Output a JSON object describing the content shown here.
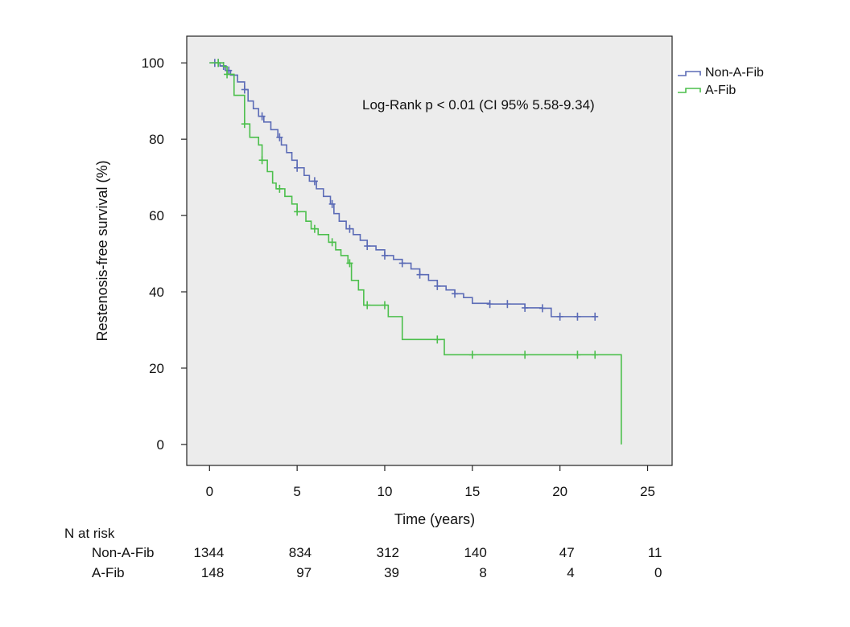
{
  "chart_data": {
    "type": "line",
    "subtype": "kaplan-meier",
    "title": "",
    "xlabel": "Time (years)",
    "ylabel": "Restenosis-free survival (%)",
    "xlim": [
      -1.3,
      26.4
    ],
    "ylim": [
      -5.5,
      107
    ],
    "xticks": [
      0,
      5,
      10,
      15,
      20,
      25
    ],
    "yticks": [
      0,
      20,
      40,
      60,
      80,
      100
    ],
    "grid": false,
    "background": "#ececec",
    "annotation": "Log-Rank p < 0.01 (CI 95% 5.58-9.34)",
    "legend": {
      "position": "top-right-outside",
      "entries": [
        {
          "label": "Non-A-Fib",
          "color": "#5b6bb6"
        },
        {
          "label": "A-Fib",
          "color": "#4cbf4c"
        }
      ]
    },
    "series": [
      {
        "name": "Non-A-Fib",
        "color": "#5b6bb6",
        "steps": [
          [
            0,
            100
          ],
          [
            0.6,
            99.2
          ],
          [
            0.9,
            98
          ],
          [
            1.2,
            96.8
          ],
          [
            1.6,
            95
          ],
          [
            2,
            93
          ],
          [
            2.2,
            90
          ],
          [
            2.5,
            88
          ],
          [
            2.8,
            86
          ],
          [
            3.1,
            84.5
          ],
          [
            3.5,
            82.5
          ],
          [
            3.9,
            80.5
          ],
          [
            4.1,
            78.5
          ],
          [
            4.4,
            76.5
          ],
          [
            4.7,
            74.5
          ],
          [
            5.0,
            72.5
          ],
          [
            5.4,
            70.5
          ],
          [
            5.7,
            69
          ],
          [
            6.1,
            67
          ],
          [
            6.5,
            65
          ],
          [
            6.9,
            63
          ],
          [
            7.1,
            60.5
          ],
          [
            7.4,
            58.5
          ],
          [
            7.8,
            56.5
          ],
          [
            8.2,
            55
          ],
          [
            8.6,
            53.5
          ],
          [
            9.0,
            52
          ],
          [
            9.5,
            51
          ],
          [
            10.0,
            49.5
          ],
          [
            10.5,
            48.5
          ],
          [
            11.0,
            47.5
          ],
          [
            11.5,
            46
          ],
          [
            12.0,
            44.5
          ],
          [
            12.5,
            43
          ],
          [
            13.0,
            41.5
          ],
          [
            13.5,
            40.5
          ],
          [
            14.0,
            39.5
          ],
          [
            14.5,
            38.5
          ],
          [
            15.0,
            37
          ],
          [
            16.0,
            36.8
          ],
          [
            18.0,
            35.8
          ],
          [
            19.0,
            35.7
          ],
          [
            19.5,
            33.5
          ],
          [
            22.1,
            33.5
          ]
        ],
        "censor_x": [
          0.3,
          0.5,
          0.8,
          1.1,
          2.0,
          3.0,
          4.0,
          5.0,
          6.0,
          7.0,
          8.0,
          9.0,
          10.0,
          11.0,
          12.0,
          13.0,
          14.0,
          16.0,
          17.0,
          18.0,
          19.0,
          20.0,
          21.0,
          22.0
        ]
      },
      {
        "name": "A-Fib",
        "color": "#4cbf4c",
        "steps": [
          [
            0,
            100
          ],
          [
            0.8,
            99
          ],
          [
            1.0,
            97
          ],
          [
            1.4,
            91.5
          ],
          [
            2.0,
            84
          ],
          [
            2.3,
            80.5
          ],
          [
            2.8,
            78.5
          ],
          [
            3.0,
            74.5
          ],
          [
            3.3,
            71.5
          ],
          [
            3.6,
            68.5
          ],
          [
            3.8,
            67
          ],
          [
            4.3,
            65
          ],
          [
            4.7,
            63
          ],
          [
            5.0,
            61
          ],
          [
            5.5,
            58.5
          ],
          [
            5.8,
            56.5
          ],
          [
            6.2,
            55
          ],
          [
            6.8,
            53
          ],
          [
            7.2,
            51
          ],
          [
            7.5,
            49.5
          ],
          [
            7.9,
            47.5
          ],
          [
            8.1,
            43
          ],
          [
            8.5,
            40.5
          ],
          [
            8.8,
            36.5
          ],
          [
            10.2,
            33.5
          ],
          [
            11.0,
            27.5
          ],
          [
            13.4,
            23.5
          ],
          [
            23.5,
            0
          ]
        ],
        "censor_x": [
          0.5,
          1.0,
          2.0,
          3.0,
          4.0,
          5.0,
          6.0,
          7.0,
          8.0,
          9.0,
          10.0,
          13.0,
          15.0,
          18.0,
          21.0,
          22.0
        ]
      }
    ],
    "risk_table": {
      "title": "N at risk",
      "times": [
        0,
        5,
        10,
        15,
        20,
        25
      ],
      "rows": [
        {
          "label": "Non-A-Fib",
          "values": [
            "1344",
            "834",
            "312",
            "140",
            "47",
            "11"
          ]
        },
        {
          "label": "A-Fib",
          "values": [
            "148",
            "97",
            "39",
            "8",
            "4",
            "0"
          ]
        }
      ]
    }
  }
}
